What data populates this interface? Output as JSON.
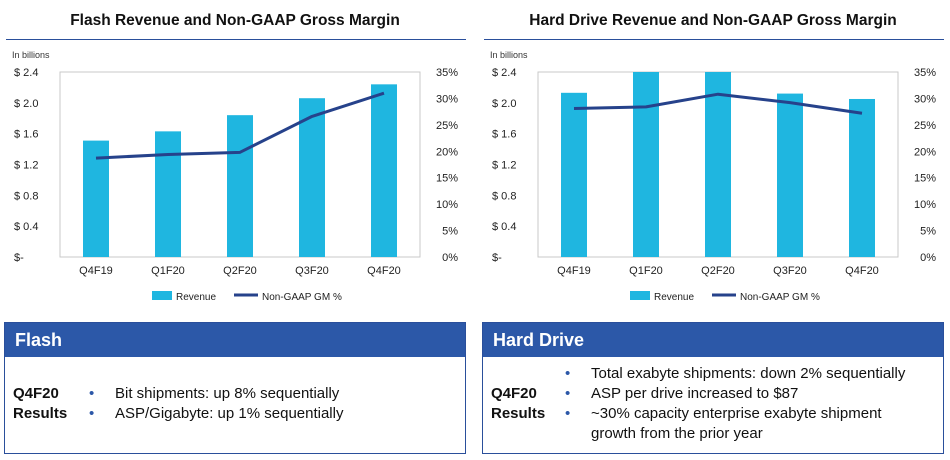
{
  "charts": [
    {
      "title": "Flash Revenue and Non-GAAP Gross Margin",
      "unit_note": "In billions",
      "legend": {
        "bar": "Revenue",
        "line": "Non-GAAP GM %"
      }
    },
    {
      "title": "Hard Drive Revenue and Non-GAAP Gross Margin",
      "unit_note": "In billions",
      "legend": {
        "bar": "Revenue",
        "line": "Non-GAAP GM %"
      }
    }
  ],
  "chart_data": [
    {
      "type": "bar",
      "title": "Flash Revenue and Non-GAAP Gross Margin",
      "categories": [
        "Q4F19",
        "Q1F20",
        "Q2F20",
        "Q3F20",
        "Q4F20"
      ],
      "series": [
        {
          "name": "Revenue",
          "type": "bar",
          "axis": "left",
          "values": [
            1.51,
            1.63,
            1.84,
            2.06,
            2.24
          ]
        },
        {
          "name": "Non-GAAP GM %",
          "type": "line",
          "axis": "right",
          "values": [
            18.7,
            19.4,
            19.8,
            26.6,
            31.0
          ]
        }
      ],
      "y_left": {
        "label": "In billions",
        "ylim": [
          0,
          2.4
        ],
        "ticks": [
          0,
          0.4,
          0.8,
          1.2,
          1.6,
          2.0,
          2.4
        ],
        "tick_labels": [
          "$-",
          "$ 0.4",
          "$ 0.8",
          "$ 1.2",
          "$ 1.6",
          "$ 2.0",
          "$ 2.4"
        ]
      },
      "y_right": {
        "ylim": [
          0,
          35
        ],
        "ticks": [
          0,
          5,
          10,
          15,
          20,
          25,
          30,
          35
        ],
        "tick_labels": [
          "0%",
          "5%",
          "10%",
          "15%",
          "20%",
          "25%",
          "30%",
          "35%"
        ]
      },
      "legend": "bottom",
      "grid": false,
      "colors": {
        "bar": "#1fb6e0",
        "line": "#26428b"
      }
    },
    {
      "type": "bar",
      "title": "Hard Drive Revenue and Non-GAAP Gross Margin",
      "categories": [
        "Q4F19",
        "Q1F20",
        "Q2F20",
        "Q3F20",
        "Q4F20"
      ],
      "series": [
        {
          "name": "Revenue",
          "type": "bar",
          "axis": "left",
          "values": [
            2.13,
            2.4,
            2.4,
            2.12,
            2.05
          ]
        },
        {
          "name": "Non-GAAP GM %",
          "type": "line",
          "axis": "right",
          "values": [
            28.1,
            28.4,
            30.8,
            29.2,
            27.2
          ]
        }
      ],
      "y_left": {
        "label": "In billions",
        "ylim": [
          0,
          2.4
        ],
        "ticks": [
          0,
          0.4,
          0.8,
          1.2,
          1.6,
          2.0,
          2.4
        ],
        "tick_labels": [
          "$-",
          "$ 0.4",
          "$ 0.8",
          "$ 1.2",
          "$ 1.6",
          "$ 2.0",
          "$ 2.4"
        ]
      },
      "y_right": {
        "ylim": [
          0,
          35
        ],
        "ticks": [
          0,
          5,
          10,
          15,
          20,
          25,
          30,
          35
        ],
        "tick_labels": [
          "0%",
          "5%",
          "10%",
          "15%",
          "20%",
          "25%",
          "30%",
          "35%"
        ]
      },
      "legend": "bottom",
      "grid": false,
      "colors": {
        "bar": "#1fb6e0",
        "line": "#26428b"
      }
    }
  ],
  "flash_box": {
    "header": "Flash",
    "label_line1": "Q4F20",
    "label_line2": "Results",
    "bullets": [
      "Bit shipments: up 8% sequentially",
      "ASP/Gigabyte: up 1% sequentially"
    ]
  },
  "hdd_box": {
    "header": "Hard Drive",
    "label_line1": "Q4F20",
    "label_line2": "Results",
    "bullets": [
      "Total exabyte shipments: down 2% sequentially",
      "ASP per drive increased to $87",
      "~30% capacity enterprise exabyte shipment growth from the prior year"
    ]
  },
  "colors": {
    "header_blue": "#2c58a8",
    "border_blue": "#2a4f9b",
    "bar": "#1fb6e0",
    "line": "#26428b"
  }
}
